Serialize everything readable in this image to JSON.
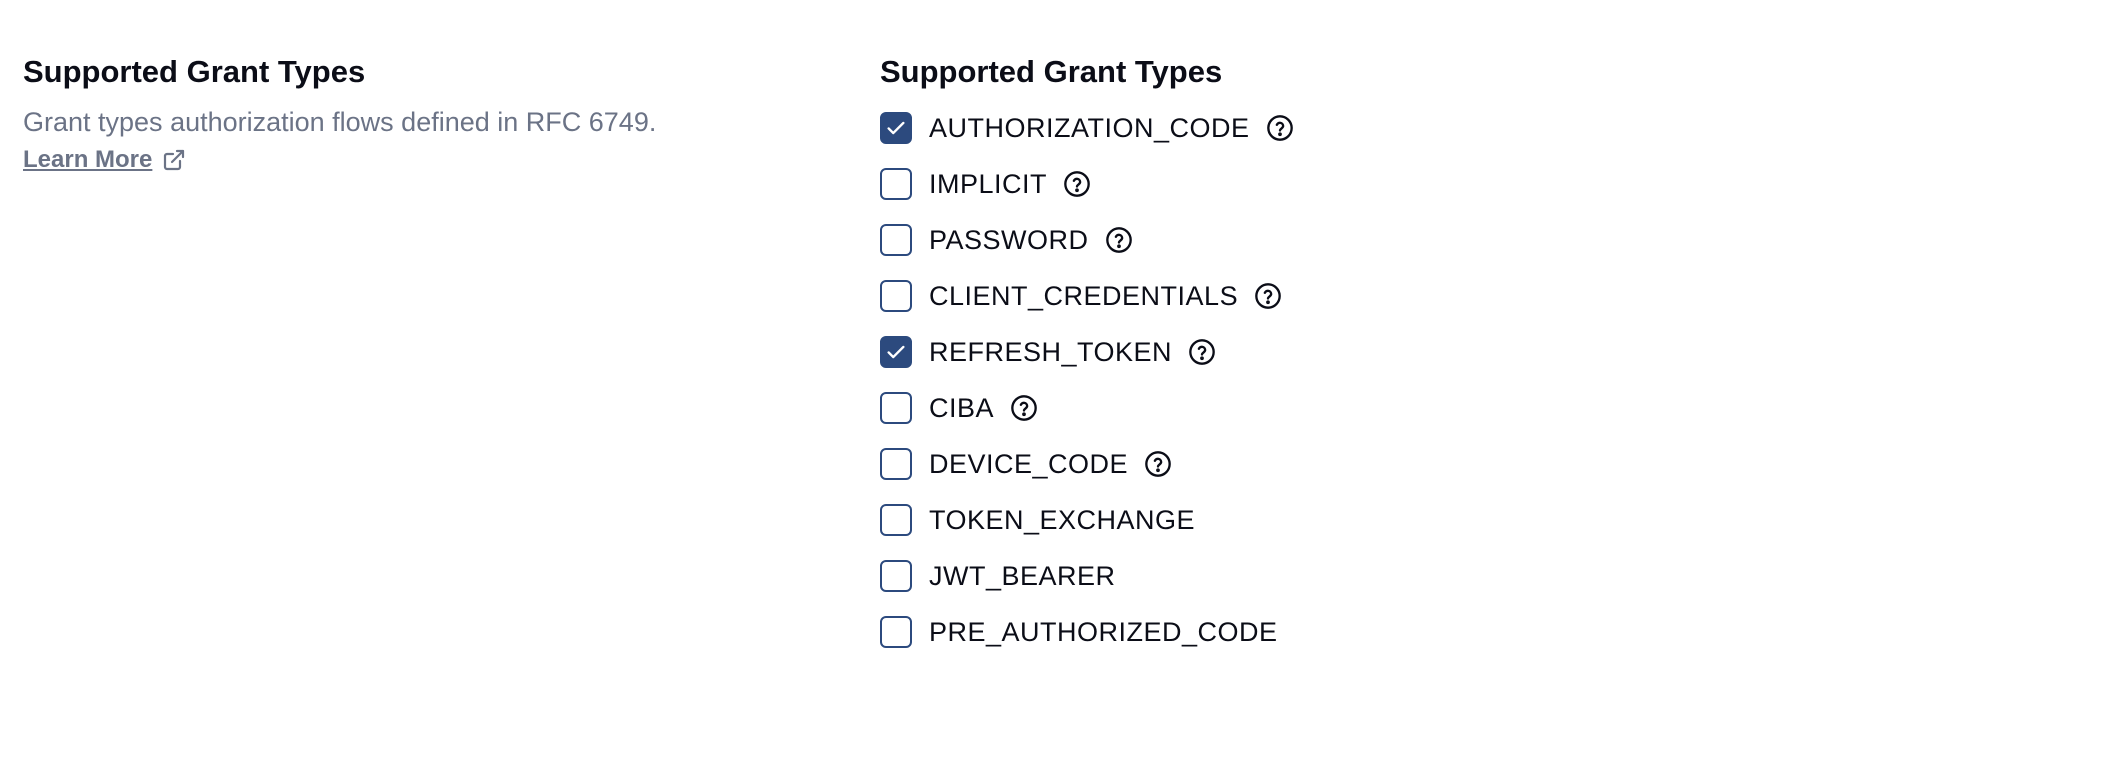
{
  "left": {
    "title": "Supported Grant Types",
    "description": "Grant types authorization flows defined in RFC 6749.",
    "learn_more": "Learn More"
  },
  "right": {
    "title": "Supported Grant Types",
    "items": [
      {
        "label": "AUTHORIZATION_CODE",
        "checked": true,
        "help": true
      },
      {
        "label": "IMPLICIT",
        "checked": false,
        "help": true
      },
      {
        "label": "PASSWORD",
        "checked": false,
        "help": true
      },
      {
        "label": "CLIENT_CREDENTIALS",
        "checked": false,
        "help": true
      },
      {
        "label": "REFRESH_TOKEN",
        "checked": true,
        "help": true
      },
      {
        "label": "CIBA",
        "checked": false,
        "help": true
      },
      {
        "label": "DEVICE_CODE",
        "checked": false,
        "help": true
      },
      {
        "label": "TOKEN_EXCHANGE",
        "checked": false,
        "help": false
      },
      {
        "label": "JWT_BEARER",
        "checked": false,
        "help": false
      },
      {
        "label": "PRE_AUTHORIZED_CODE",
        "checked": false,
        "help": false
      }
    ]
  },
  "colors": {
    "accent": "#2c4a7e",
    "muted": "#6b7386"
  }
}
